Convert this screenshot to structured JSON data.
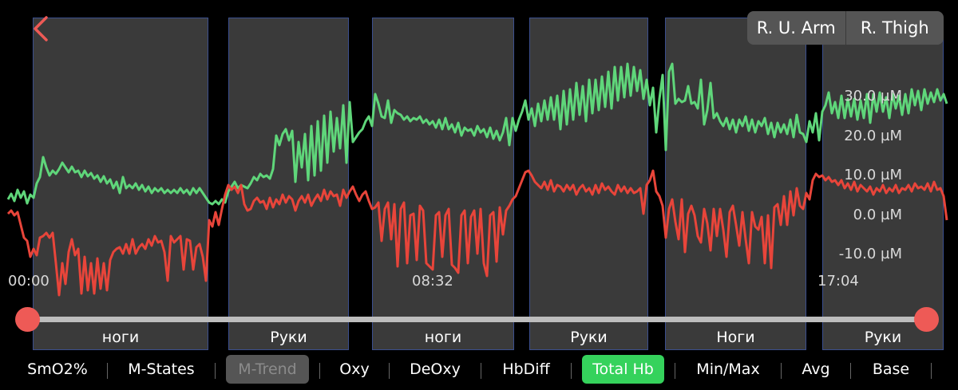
{
  "back_button": {
    "icon": "chevron-left-icon",
    "color": "#ee5a56"
  },
  "limb_selector": [
    {
      "label": "R. U. Arm"
    },
    {
      "label": "R. Thigh"
    }
  ],
  "segments": [
    {
      "label": "ноги"
    },
    {
      "label": "Руки"
    },
    {
      "label": "ноги"
    },
    {
      "label": "Руки"
    },
    {
      "label": "Ноги"
    },
    {
      "label": "Руки"
    }
  ],
  "y_axis": {
    "unit": "µM",
    "ticks": [
      "30.0 µM",
      "20.0 µM",
      "10.0 µM",
      "0.0 µM",
      "-10.0 µM"
    ]
  },
  "time_labels": [
    "00:00",
    "08:32",
    "17:04"
  ],
  "slider": {
    "start": 0.0,
    "end": 1.0,
    "color": "#ee5a56"
  },
  "tabs": [
    {
      "label": "SmO2%",
      "state": "normal"
    },
    {
      "label": "M-States",
      "state": "normal"
    },
    {
      "label": "M-Trend",
      "state": "disabled"
    },
    {
      "label": "Oxy",
      "state": "normal"
    },
    {
      "label": "DeOxy",
      "state": "normal"
    },
    {
      "label": "HbDiff",
      "state": "normal"
    },
    {
      "label": "Total Hb",
      "state": "active"
    },
    {
      "label": "Min/Max",
      "state": "normal"
    },
    {
      "label": "Avg",
      "state": "normal"
    },
    {
      "label": "Base",
      "state": "normal"
    }
  ],
  "colors": {
    "green_series": "#5fd67a",
    "red_series": "#e8453a",
    "accent_tab": "#35d25c"
  }
}
